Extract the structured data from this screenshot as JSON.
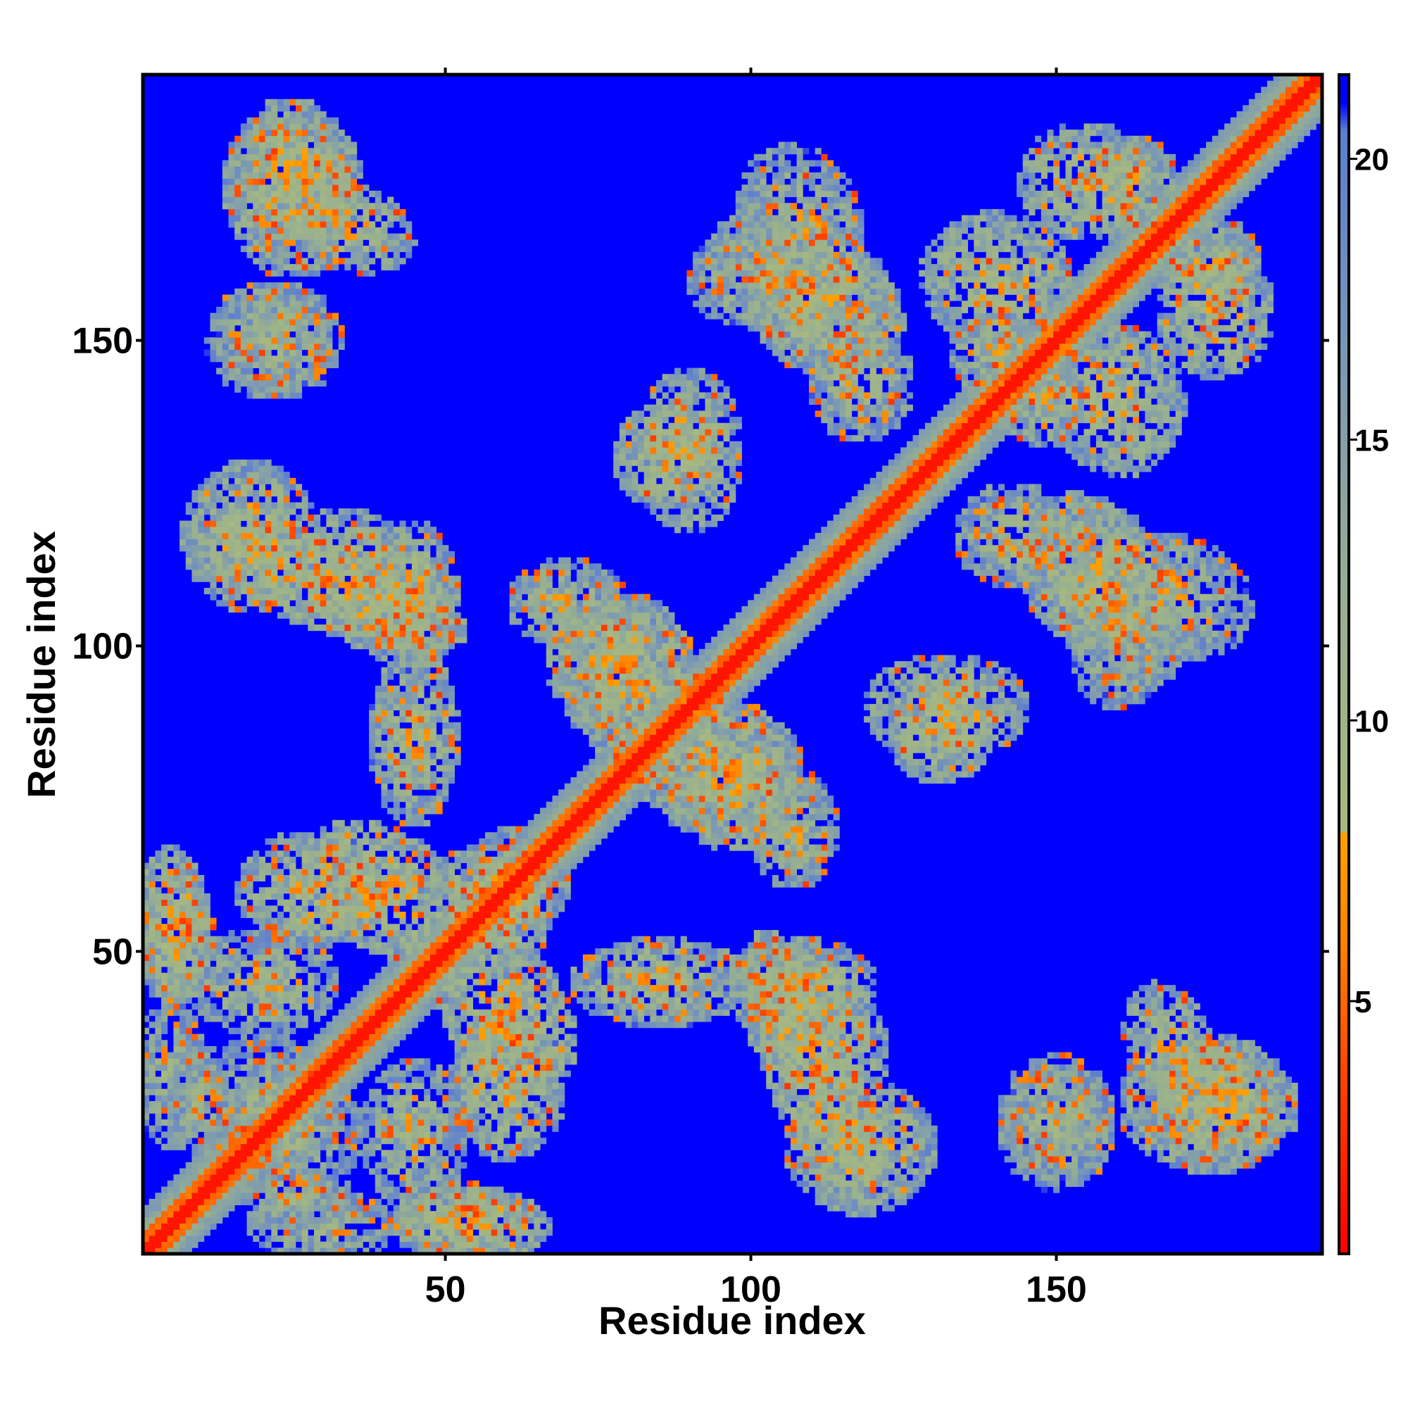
{
  "chart_data": {
    "type": "heatmap",
    "title": "",
    "xlabel": "Residue index",
    "ylabel": "Residue index",
    "xlim": [
      1,
      193
    ],
    "ylim": [
      1,
      193
    ],
    "x_ticks": [
      50,
      100,
      150
    ],
    "y_ticks": [
      50,
      100,
      150
    ],
    "matrix_size": 193,
    "colorbar": {
      "ticks": [
        5,
        10,
        15,
        20
      ],
      "range": [
        0.5,
        21.5
      ],
      "stops": [
        {
          "value": 0.5,
          "color": "#ff0000"
        },
        {
          "value": 3.5,
          "color": "#ff4000"
        },
        {
          "value": 6.0,
          "color": "#ff8000"
        },
        {
          "value": 8.0,
          "color": "#ffa000"
        },
        {
          "value": 8.01,
          "color": "#a8b880"
        },
        {
          "value": 12.0,
          "color": "#98b090"
        },
        {
          "value": 16.0,
          "color": "#7d9ab2"
        },
        {
          "value": 20.5,
          "color": "#5d7ed0"
        },
        {
          "value": 21.0,
          "color": "#0000ff"
        }
      ]
    },
    "background_value": 21,
    "background_color": "#0000ff",
    "diagonal_band": {
      "core_value": 1.5,
      "mid_value": 5.5,
      "halfwidth": 7
    },
    "contact_clusters": [
      {
        "x": 25,
        "y": 177,
        "rx": 9,
        "ry": 9,
        "angle": 0,
        "value": 9
      },
      {
        "x": 33,
        "y": 169,
        "rx": 10,
        "ry": 6,
        "angle": -20,
        "value": 9
      },
      {
        "x": 22,
        "y": 150,
        "rx": 9,
        "ry": 8,
        "angle": 0,
        "value": 11
      },
      {
        "x": 30,
        "y": 110,
        "rx": 20,
        "ry": 6,
        "angle": -20,
        "value": 8
      },
      {
        "x": 45,
        "y": 108,
        "rx": 6,
        "ry": 10,
        "angle": 0,
        "value": 9
      },
      {
        "x": 44,
        "y": 86,
        "rx": 4,
        "ry": 6,
        "angle": 0,
        "value": 10
      },
      {
        "x": 86,
        "y": 131,
        "rx": 7,
        "ry": 7,
        "angle": 0,
        "value": 9
      },
      {
        "x": 108,
        "y": 160,
        "rx": 13,
        "ry": 9,
        "angle": -25,
        "value": 9
      },
      {
        "x": 118,
        "y": 143,
        "rx": 7,
        "ry": 8,
        "angle": 0,
        "value": 10
      },
      {
        "x": 140,
        "y": 160,
        "rx": 10,
        "ry": 9,
        "angle": 0,
        "value": 9
      },
      {
        "x": 155,
        "y": 176,
        "rx": 9,
        "ry": 8,
        "angle": 0,
        "value": 9
      },
      {
        "x": 175,
        "y": 162,
        "rx": 7,
        "ry": 7,
        "angle": 0,
        "value": 9
      },
      {
        "x": 148,
        "y": 140,
        "rx": 6,
        "ry": 6,
        "angle": 0,
        "value": 10
      },
      {
        "x": 154,
        "y": 113,
        "rx": 8,
        "ry": 10,
        "angle": 0,
        "value": 9
      },
      {
        "x": 170,
        "y": 108,
        "rx": 10,
        "ry": 8,
        "angle": -20,
        "value": 10
      },
      {
        "x": 160,
        "y": 97,
        "rx": 6,
        "ry": 6,
        "angle": 0,
        "value": 11
      },
      {
        "x": 132,
        "y": 90,
        "rx": 11,
        "ry": 7,
        "angle": 0,
        "value": 9
      },
      {
        "x": 78,
        "y": 97,
        "rx": 9,
        "ry": 10,
        "angle": 45,
        "value": 9
      },
      {
        "x": 95,
        "y": 80,
        "rx": 11,
        "ry": 9,
        "angle": 0,
        "value": 9
      },
      {
        "x": 107,
        "y": 70,
        "rx": 6,
        "ry": 8,
        "angle": 0,
        "value": 10
      },
      {
        "x": 40,
        "y": 60,
        "rx": 12,
        "ry": 8,
        "angle": -30,
        "value": 8
      },
      {
        "x": 60,
        "y": 58,
        "rx": 6,
        "ry": 10,
        "angle": 0,
        "value": 9
      },
      {
        "x": 20,
        "y": 45,
        "rx": 10,
        "ry": 7,
        "angle": 0,
        "value": 10
      },
      {
        "x": 6,
        "y": 52,
        "rx": 5,
        "ry": 10,
        "angle": 0,
        "value": 9
      },
      {
        "x": 85,
        "y": 45,
        "rx": 12,
        "ry": 6,
        "angle": 0,
        "value": 9
      },
      {
        "x": 110,
        "y": 38,
        "rx": 12,
        "ry": 8,
        "angle": -45,
        "value": 9
      },
      {
        "x": 118,
        "y": 18,
        "rx": 10,
        "ry": 9,
        "angle": 0,
        "value": 9
      },
      {
        "x": 150,
        "y": 22,
        "rx": 8,
        "ry": 8,
        "angle": 0,
        "value": 10
      },
      {
        "x": 175,
        "y": 25,
        "rx": 12,
        "ry": 9,
        "angle": 0,
        "value": 9
      },
      {
        "x": 60,
        "y": 28,
        "rx": 8,
        "ry": 10,
        "angle": 0,
        "value": 9
      },
      {
        "x": 55,
        "y": 5,
        "rx": 10,
        "ry": 5,
        "angle": 0,
        "value": 8
      },
      {
        "x": 25,
        "y": 20,
        "rx": 10,
        "ry": 7,
        "angle": 0,
        "value": 11
      },
      {
        "x": 30,
        "y": 5,
        "rx": 10,
        "ry": 5,
        "angle": 0,
        "value": 11
      },
      {
        "x": 10,
        "y": 25,
        "rx": 5,
        "ry": 8,
        "angle": 0,
        "value": 11
      }
    ]
  }
}
